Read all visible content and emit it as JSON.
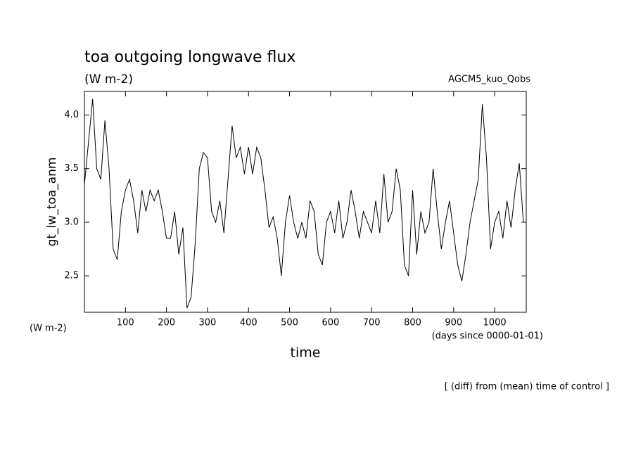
{
  "chart_data": {
    "type": "line",
    "title": "toa outgoing longwave flux",
    "subtitle": "(W m-2)",
    "dataset_label": "AGCM5_kuo_Qobs",
    "y_label": "gt_lw_toa_anm",
    "y_unit": "(W m-2)",
    "x_unit": "(days since 0000-01-01)",
    "x_label": "time",
    "footnote": "[ (diff) from (mean) time of control ]",
    "xlim": [
      0,
      1077
    ],
    "ylim": [
      2.16,
      4.22
    ],
    "xticks": [
      100,
      200,
      300,
      400,
      500,
      600,
      700,
      800,
      900,
      1000
    ],
    "yticks": [
      2.5,
      {
        "value": 3,
        "label": "3.0"
      },
      3.5,
      {
        "value": 4,
        "label": "4.0"
      }
    ],
    "x": [
      0,
      10,
      20,
      30,
      40,
      50,
      60,
      70,
      80,
      90,
      100,
      110,
      120,
      130,
      140,
      150,
      160,
      170,
      180,
      190,
      200,
      210,
      220,
      230,
      240,
      250,
      260,
      270,
      280,
      290,
      300,
      310,
      320,
      330,
      340,
      350,
      360,
      370,
      380,
      390,
      400,
      410,
      420,
      430,
      440,
      450,
      460,
      470,
      480,
      490,
      500,
      510,
      520,
      530,
      540,
      550,
      560,
      570,
      580,
      590,
      600,
      610,
      620,
      630,
      640,
      650,
      660,
      670,
      680,
      690,
      700,
      710,
      720,
      730,
      740,
      750,
      760,
      770,
      780,
      790,
      800,
      810,
      820,
      830,
      840,
      850,
      860,
      870,
      880,
      890,
      900,
      910,
      920,
      930,
      940,
      950,
      960,
      970,
      980,
      990,
      1000,
      1010,
      1020,
      1030,
      1040,
      1050,
      1060,
      1070
    ],
    "series": [
      {
        "color": "#000000",
        "values": [
          3.35,
          3.75,
          4.15,
          3.5,
          3.4,
          3.95,
          3.5,
          2.75,
          2.65,
          3.1,
          3.3,
          3.4,
          3.2,
          2.9,
          3.3,
          3.1,
          3.3,
          3.2,
          3.3,
          3.1,
          2.85,
          2.85,
          3.1,
          2.7,
          2.95,
          2.2,
          2.3,
          2.8,
          3.5,
          3.65,
          3.6,
          3.1,
          3.0,
          3.2,
          2.9,
          3.4,
          3.9,
          3.6,
          3.7,
          3.45,
          3.7,
          3.45,
          3.7,
          3.6,
          3.3,
          2.95,
          3.05,
          2.85,
          2.5,
          3.0,
          3.25,
          3.0,
          2.85,
          3.0,
          2.85,
          3.2,
          3.1,
          2.7,
          2.6,
          3.0,
          3.1,
          2.9,
          3.2,
          2.85,
          3.0,
          3.3,
          3.1,
          2.85,
          3.1,
          3.0,
          2.9,
          3.2,
          2.9,
          3.45,
          3.0,
          3.1,
          3.5,
          3.3,
          2.6,
          2.5,
          3.3,
          2.7,
          3.1,
          2.9,
          3.0,
          3.5,
          3.1,
          2.75,
          3.0,
          3.2,
          2.9,
          2.6,
          2.45,
          2.7,
          3.0,
          3.2,
          3.4,
          4.1,
          3.6,
          2.75,
          3.0,
          3.1,
          2.85,
          3.2,
          2.95,
          3.3,
          3.55,
          3.0
        ]
      }
    ]
  }
}
